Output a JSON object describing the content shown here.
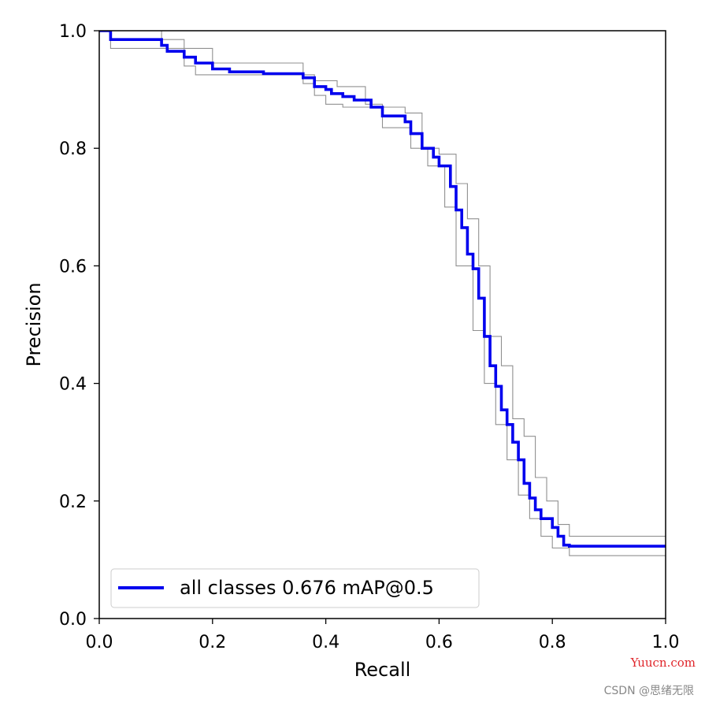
{
  "chart_data": {
    "type": "line",
    "xlabel": "Recall",
    "ylabel": "Precision",
    "xlim": [
      0,
      1
    ],
    "ylim": [
      0,
      1
    ],
    "xticks": [
      "0.0",
      "0.2",
      "0.4",
      "0.6",
      "0.8",
      "1.0"
    ],
    "yticks": [
      "0.0",
      "0.2",
      "0.4",
      "0.6",
      "0.8",
      "1.0"
    ],
    "grid": false,
    "legend": {
      "placement": "lower-left",
      "entries": [
        "all classes 0.676 mAP@0.5"
      ]
    },
    "colors": {
      "all_classes": "#0000ee",
      "per_class": "#909090"
    },
    "series": [
      {
        "name": "all classes 0.676 mAP@0.5",
        "role": "mean",
        "x": [
          0,
          0.02,
          0.02,
          0.11,
          0.11,
          0.12,
          0.12,
          0.15,
          0.15,
          0.17,
          0.17,
          0.2,
          0.2,
          0.23,
          0.23,
          0.29,
          0.29,
          0.36,
          0.36,
          0.38,
          0.38,
          0.4,
          0.4,
          0.41,
          0.41,
          0.43,
          0.43,
          0.45,
          0.45,
          0.48,
          0.48,
          0.5,
          0.5,
          0.54,
          0.54,
          0.55,
          0.55,
          0.57,
          0.57,
          0.59,
          0.59,
          0.6,
          0.6,
          0.62,
          0.62,
          0.63,
          0.63,
          0.64,
          0.64,
          0.65,
          0.65,
          0.66,
          0.66,
          0.67,
          0.67,
          0.68,
          0.68,
          0.69,
          0.69,
          0.7,
          0.7,
          0.71,
          0.71,
          0.72,
          0.72,
          0.73,
          0.73,
          0.74,
          0.74,
          0.75,
          0.75,
          0.76,
          0.76,
          0.77,
          0.77,
          0.78,
          0.78,
          0.8,
          0.8,
          0.81,
          0.81,
          0.82,
          0.82,
          0.83,
          0.83,
          1.0
        ],
        "y": [
          1.0,
          1.0,
          0.985,
          0.985,
          0.975,
          0.975,
          0.965,
          0.965,
          0.955,
          0.955,
          0.945,
          0.945,
          0.935,
          0.935,
          0.93,
          0.93,
          0.927,
          0.927,
          0.92,
          0.92,
          0.905,
          0.905,
          0.9,
          0.9,
          0.893,
          0.893,
          0.888,
          0.888,
          0.882,
          0.882,
          0.87,
          0.87,
          0.855,
          0.855,
          0.845,
          0.845,
          0.825,
          0.825,
          0.8,
          0.8,
          0.785,
          0.785,
          0.77,
          0.77,
          0.735,
          0.735,
          0.695,
          0.695,
          0.665,
          0.665,
          0.62,
          0.62,
          0.595,
          0.595,
          0.545,
          0.545,
          0.48,
          0.48,
          0.43,
          0.43,
          0.395,
          0.395,
          0.355,
          0.355,
          0.33,
          0.33,
          0.3,
          0.3,
          0.27,
          0.27,
          0.23,
          0.23,
          0.205,
          0.205,
          0.185,
          0.185,
          0.17,
          0.17,
          0.155,
          0.155,
          0.14,
          0.14,
          0.125,
          0.125,
          0.123,
          0.123
        ]
      },
      {
        "name": "",
        "role": "class",
        "x": [
          0,
          0.11,
          0.11,
          0.15,
          0.15,
          0.2,
          0.2,
          0.36,
          0.36,
          0.38,
          0.38,
          0.42,
          0.42,
          0.47,
          0.47,
          0.5,
          0.5,
          0.54,
          0.54,
          0.57,
          0.57,
          0.6,
          0.6,
          0.63,
          0.63,
          0.65,
          0.65,
          0.67,
          0.67,
          0.69,
          0.69,
          0.71,
          0.71,
          0.73,
          0.73,
          0.75,
          0.75,
          0.77,
          0.77,
          0.79,
          0.79,
          0.81,
          0.81,
          0.83,
          0.83,
          1.0
        ],
        "y": [
          1.0,
          1.0,
          0.985,
          0.985,
          0.97,
          0.97,
          0.945,
          0.945,
          0.925,
          0.925,
          0.915,
          0.915,
          0.905,
          0.905,
          0.875,
          0.875,
          0.87,
          0.87,
          0.86,
          0.86,
          0.8,
          0.8,
          0.79,
          0.79,
          0.74,
          0.74,
          0.68,
          0.68,
          0.6,
          0.6,
          0.48,
          0.48,
          0.43,
          0.43,
          0.34,
          0.34,
          0.31,
          0.31,
          0.24,
          0.24,
          0.2,
          0.2,
          0.16,
          0.16,
          0.14,
          0.14
        ]
      },
      {
        "name": "",
        "role": "class",
        "x": [
          0,
          0.02,
          0.02,
          0.15,
          0.15,
          0.17,
          0.17,
          0.36,
          0.36,
          0.38,
          0.38,
          0.4,
          0.4,
          0.43,
          0.43,
          0.5,
          0.5,
          0.55,
          0.55,
          0.58,
          0.58,
          0.61,
          0.61,
          0.63,
          0.63,
          0.66,
          0.66,
          0.68,
          0.68,
          0.7,
          0.7,
          0.72,
          0.72,
          0.74,
          0.74,
          0.76,
          0.76,
          0.78,
          0.78,
          0.8,
          0.8,
          0.83,
          0.83,
          1.0
        ],
        "y": [
          1.0,
          1.0,
          0.97,
          0.97,
          0.94,
          0.94,
          0.925,
          0.925,
          0.91,
          0.91,
          0.89,
          0.89,
          0.875,
          0.875,
          0.87,
          0.87,
          0.835,
          0.835,
          0.8,
          0.8,
          0.77,
          0.77,
          0.7,
          0.7,
          0.6,
          0.6,
          0.49,
          0.49,
          0.4,
          0.4,
          0.33,
          0.33,
          0.27,
          0.27,
          0.21,
          0.21,
          0.17,
          0.17,
          0.14,
          0.14,
          0.12,
          0.12,
          0.107,
          0.107
        ]
      }
    ]
  },
  "watermarks": {
    "site": "Yuucn.com",
    "author": "CSDN @思绪无限"
  }
}
